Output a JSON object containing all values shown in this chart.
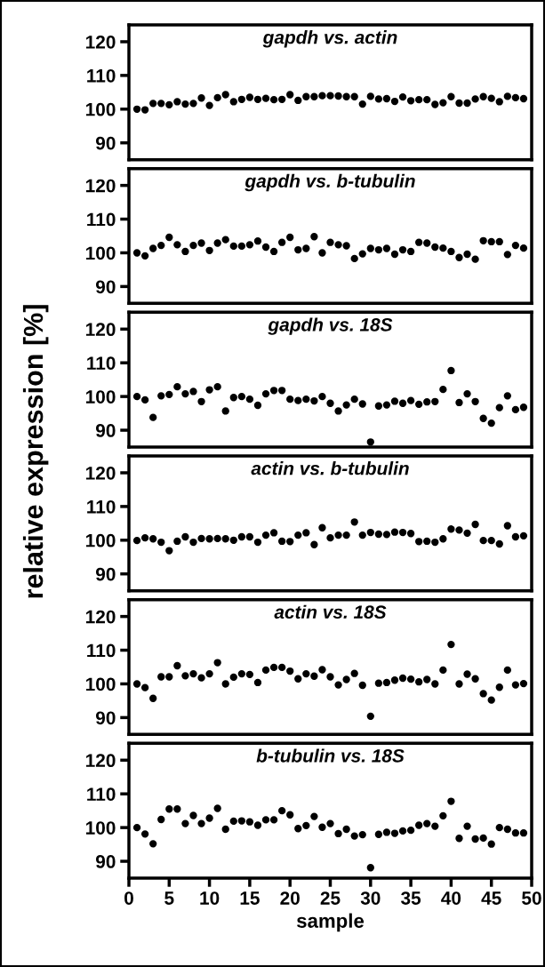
{
  "chart_data": [
    {
      "type": "scatter",
      "title": "gapdh vs. actin",
      "x": [
        1,
        2,
        3,
        4,
        5,
        6,
        7,
        8,
        9,
        10,
        11,
        12,
        13,
        14,
        15,
        16,
        17,
        18,
        19,
        20,
        21,
        22,
        23,
        24,
        25,
        26,
        27,
        28,
        29,
        30,
        31,
        32,
        33,
        34,
        35,
        36,
        37,
        38,
        39,
        40,
        41,
        42,
        43,
        44,
        45,
        46,
        47,
        48,
        49
      ],
      "series": [
        {
          "color": "#000000",
          "values": [
            100,
            99.8,
            101.7,
            101.7,
            101.3,
            102.2,
            101.5,
            101.7,
            103.3,
            101.1,
            103.4,
            104.3,
            102.2,
            102.9,
            103.5,
            102.9,
            103.2,
            102.8,
            102.9,
            104.3,
            102.6,
            103.7,
            103.7,
            104.0,
            104.0,
            103.9,
            103.7,
            103.7,
            101.5,
            103.8,
            103.0,
            103.1,
            102.3,
            103.6,
            102.5,
            102.8,
            102.8,
            101.4,
            101.9,
            103.7,
            101.8,
            101.8,
            103.0,
            103.7,
            103.2,
            102.2,
            103.8,
            103.4,
            103.1
          ]
        }
      ],
      "xlim": [
        0,
        50
      ],
      "xticks": [
        0,
        5,
        10,
        15,
        20,
        25,
        30,
        35,
        40,
        45,
        50
      ],
      "ylim": [
        85,
        125
      ],
      "yticks": [
        90,
        100,
        110,
        120
      ],
      "tick_labels": "y",
      "marker": "circle",
      "grid": false
    },
    {
      "type": "scatter",
      "title": "gapdh vs. b-tubulin",
      "x": [
        1,
        2,
        3,
        4,
        5,
        6,
        7,
        8,
        9,
        10,
        11,
        12,
        13,
        14,
        15,
        16,
        17,
        18,
        19,
        20,
        21,
        22,
        23,
        24,
        25,
        26,
        27,
        28,
        29,
        30,
        31,
        32,
        33,
        34,
        35,
        36,
        37,
        38,
        39,
        40,
        41,
        42,
        43,
        44,
        45,
        46,
        47,
        48,
        49
      ],
      "series": [
        {
          "color": "#000000",
          "values": [
            100,
            99.1,
            101.3,
            102.2,
            104.6,
            102.4,
            100.4,
            102.2,
            102.9,
            100.7,
            102.9,
            103.9,
            102.0,
            102.0,
            102.4,
            103.5,
            101.7,
            100.4,
            103.1,
            104.6,
            100.9,
            101.3,
            104.8,
            100,
            103.1,
            102.4,
            102.1,
            98.3,
            99.7,
            101.3,
            100.9,
            101.3,
            99.6,
            100.9,
            100.4,
            103.1,
            102.9,
            101.7,
            101.4,
            100.4,
            98.6,
            99.6,
            98.1,
            103.6,
            103.3,
            103.3,
            99.5,
            102.2,
            101.4
          ]
        }
      ],
      "xlim": [
        0,
        50
      ],
      "xticks": [
        0,
        5,
        10,
        15,
        20,
        25,
        30,
        35,
        40,
        45,
        50
      ],
      "ylim": [
        85,
        125
      ],
      "yticks": [
        90,
        100,
        110,
        120
      ],
      "tick_labels": "y",
      "marker": "circle",
      "grid": false
    },
    {
      "type": "scatter",
      "title": "gapdh vs. 18S",
      "ylabel": "relative expression [%]",
      "x": [
        1,
        2,
        3,
        4,
        5,
        6,
        7,
        8,
        9,
        10,
        11,
        12,
        13,
        14,
        15,
        16,
        17,
        18,
        19,
        20,
        21,
        22,
        23,
        24,
        25,
        26,
        27,
        28,
        29,
        30,
        31,
        32,
        33,
        34,
        35,
        36,
        37,
        38,
        39,
        40,
        41,
        42,
        43,
        44,
        45,
        46,
        47,
        48,
        49
      ],
      "series": [
        {
          "color": "#000000",
          "values": [
            100,
            99.0,
            93.8,
            100.2,
            100.6,
            102.9,
            100.8,
            101.5,
            98.5,
            102,
            102.9,
            95.7,
            99.7,
            100,
            99.2,
            97.4,
            100.8,
            101.8,
            101.8,
            99.2,
            98.8,
            99.2,
            98.7,
            100,
            98.0,
            95.7,
            97.5,
            99.2,
            97.8,
            86.5,
            97.2,
            97.5,
            98.6,
            98.0,
            98.8,
            97.7,
            98.4,
            98.5,
            102.1,
            107.7,
            98.2,
            100.8,
            98.5,
            93.5,
            92.1,
            96.7,
            100.2,
            96.1,
            96.8
          ]
        }
      ],
      "xlim": [
        0,
        50
      ],
      "xticks": [
        0,
        5,
        10,
        15,
        20,
        25,
        30,
        35,
        40,
        45,
        50
      ],
      "ylim": [
        85,
        125
      ],
      "yticks": [
        90,
        100,
        110,
        120
      ],
      "tick_labels": "y",
      "marker": "circle",
      "grid": false
    },
    {
      "type": "scatter",
      "title": "actin vs. b-tubulin",
      "x": [
        1,
        2,
        3,
        4,
        5,
        6,
        7,
        8,
        9,
        10,
        11,
        12,
        13,
        14,
        15,
        16,
        17,
        18,
        19,
        20,
        21,
        22,
        23,
        24,
        25,
        26,
        27,
        28,
        29,
        30,
        31,
        32,
        33,
        34,
        35,
        36,
        37,
        38,
        39,
        40,
        41,
        42,
        43,
        44,
        45,
        46,
        47,
        48,
        49
      ],
      "series": [
        {
          "color": "#000000",
          "values": [
            99.9,
            100.7,
            100.4,
            99.4,
            96.9,
            99.7,
            101.0,
            99.4,
            100.5,
            100.4,
            100.5,
            100.4,
            100,
            101.0,
            101.0,
            99.4,
            101.5,
            102.2,
            99.7,
            99.6,
            101.5,
            102.2,
            98.7,
            103.7,
            100.7,
            101.5,
            101.5,
            105.4,
            101.5,
            102.3,
            101.8,
            101.7,
            102.4,
            102.3,
            102.0,
            99.6,
            99.7,
            99.4,
            100.4,
            103.3,
            103.0,
            102.1,
            104.7,
            99.9,
            99.9,
            98.9,
            104.3,
            101.0,
            101.3
          ]
        }
      ],
      "xlim": [
        0,
        50
      ],
      "xticks": [
        0,
        5,
        10,
        15,
        20,
        25,
        30,
        35,
        40,
        45,
        50
      ],
      "ylim": [
        85,
        125
      ],
      "yticks": [
        90,
        100,
        110,
        120
      ],
      "tick_labels": "y",
      "marker": "circle",
      "grid": false
    },
    {
      "type": "scatter",
      "title": "actin vs. 18S",
      "x": [
        1,
        2,
        3,
        4,
        5,
        6,
        7,
        8,
        9,
        10,
        11,
        12,
        13,
        14,
        15,
        16,
        17,
        18,
        19,
        20,
        21,
        22,
        23,
        24,
        25,
        26,
        27,
        28,
        29,
        30,
        31,
        32,
        33,
        34,
        35,
        36,
        37,
        38,
        39,
        40,
        41,
        42,
        43,
        44,
        45,
        46,
        47,
        48,
        49
      ],
      "series": [
        {
          "color": "#000000",
          "values": [
            100,
            98.9,
            95.7,
            102.1,
            102.1,
            105.4,
            102.4,
            103.0,
            101.8,
            103.0,
            106.3,
            100,
            102.0,
            103.0,
            102.8,
            100.4,
            104.1,
            104.9,
            104.9,
            103.8,
            101.5,
            103.0,
            102.3,
            104.2,
            102.1,
            99.7,
            101.3,
            103.1,
            99.6,
            90.4,
            100.2,
            100.4,
            101.1,
            101.7,
            101.4,
            100.6,
            101.3,
            100,
            104.1,
            111.7,
            100,
            102.9,
            101.5,
            97.1,
            95.2,
            99.0,
            104.1,
            99.7,
            100.1
          ]
        }
      ],
      "xlim": [
        0,
        50
      ],
      "xticks": [
        0,
        5,
        10,
        15,
        20,
        25,
        30,
        35,
        40,
        45,
        50
      ],
      "ylim": [
        85,
        125
      ],
      "yticks": [
        90,
        100,
        110,
        120
      ],
      "tick_labels": "y",
      "marker": "circle",
      "grid": false
    },
    {
      "type": "scatter",
      "title": "b-tubulin vs. 18S",
      "xlabel": "sample",
      "x": [
        1,
        2,
        3,
        4,
        5,
        6,
        7,
        8,
        9,
        10,
        11,
        12,
        13,
        14,
        15,
        16,
        17,
        18,
        19,
        20,
        21,
        22,
        23,
        24,
        25,
        26,
        27,
        28,
        29,
        30,
        31,
        32,
        33,
        34,
        35,
        36,
        37,
        38,
        39,
        40,
        41,
        42,
        43,
        44,
        45,
        46,
        47,
        48,
        49
      ],
      "series": [
        {
          "color": "#000000",
          "values": [
            100,
            98.1,
            95.2,
            102.4,
            105.5,
            105.5,
            101.2,
            103.6,
            101.2,
            102.8,
            105.7,
            99.5,
            101.9,
            102.0,
            101.7,
            100.7,
            102.3,
            102.3,
            105.0,
            103.8,
            99.7,
            100.6,
            103.3,
            100.1,
            101.2,
            98.2,
            99.5,
            97.5,
            97.9,
            88.1,
            98.0,
            98.6,
            98.3,
            99.0,
            99.2,
            100.7,
            101.2,
            100.4,
            103.5,
            107.8,
            96.8,
            100.4,
            96.6,
            96.9,
            95.1,
            100,
            99.5,
            98.4,
            98.4
          ]
        }
      ],
      "xlim": [
        0,
        50
      ],
      "xticks": [
        0,
        5,
        10,
        15,
        20,
        25,
        30,
        35,
        40,
        45,
        50
      ],
      "ylim": [
        85,
        125
      ],
      "yticks": [
        90,
        100,
        110,
        120
      ],
      "marker": "circle",
      "grid": false
    }
  ]
}
